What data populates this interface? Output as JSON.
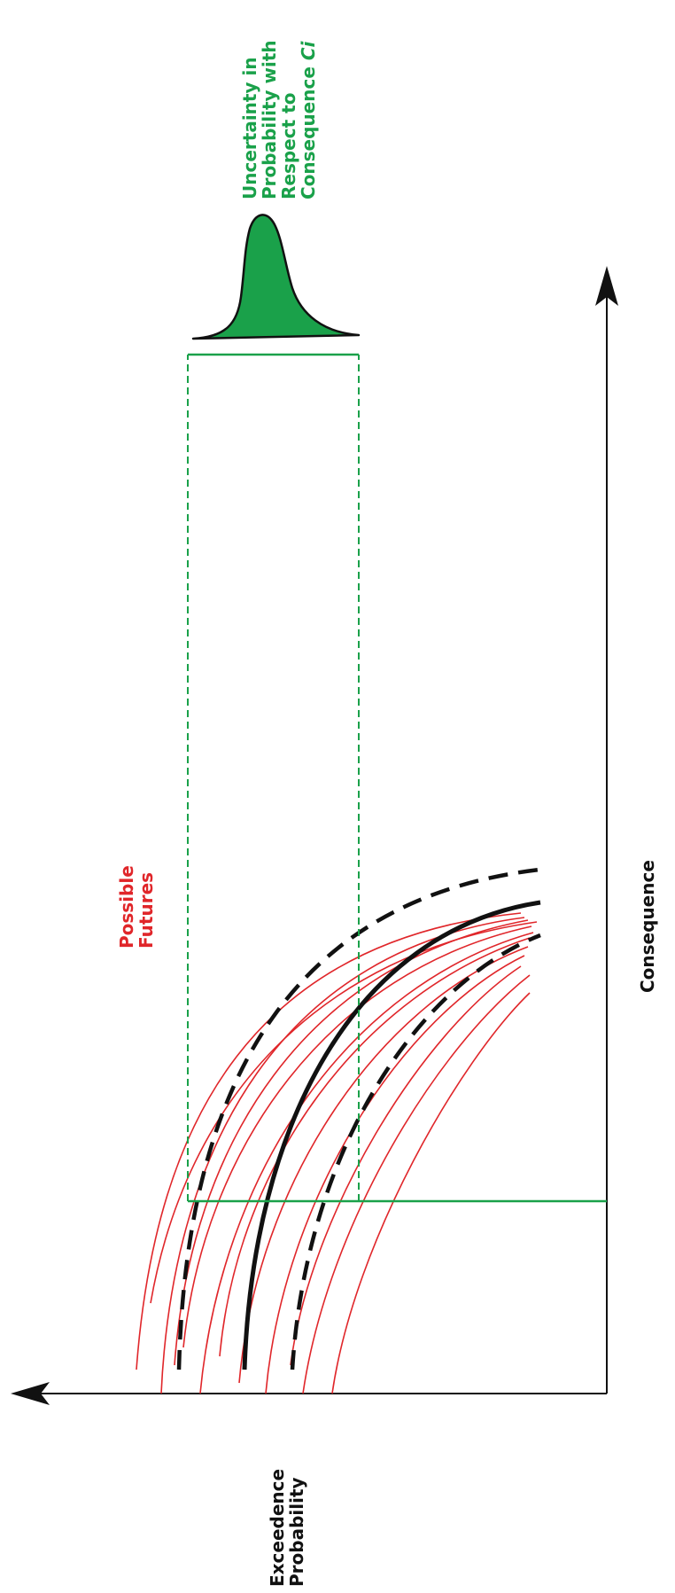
{
  "labels": {
    "uncertainty_lines": [
      "Uncertainty in",
      "Probability with",
      "Respect to"
    ],
    "uncertainty_last_prefix": "Consequence ",
    "uncertainty_last_italic": "Ci",
    "possible_futures_lines": [
      "Possible",
      "Futures"
    ],
    "x_axis": "Consequence",
    "y_axis_lines": [
      "Exceedence",
      "Probability"
    ]
  },
  "colors": {
    "axis": "#111111",
    "central_curve": "#111111",
    "bound_curves": "#111111",
    "futures_curves": "#e0262a",
    "uncertainty": "#1aa14a",
    "label_futures": "#e0262a",
    "label_uncertainty": "#1aa14a"
  },
  "icons": {
    "x_axis_arrow": "arrow-up-head",
    "y_axis_arrow": "arrow-left-head"
  }
}
